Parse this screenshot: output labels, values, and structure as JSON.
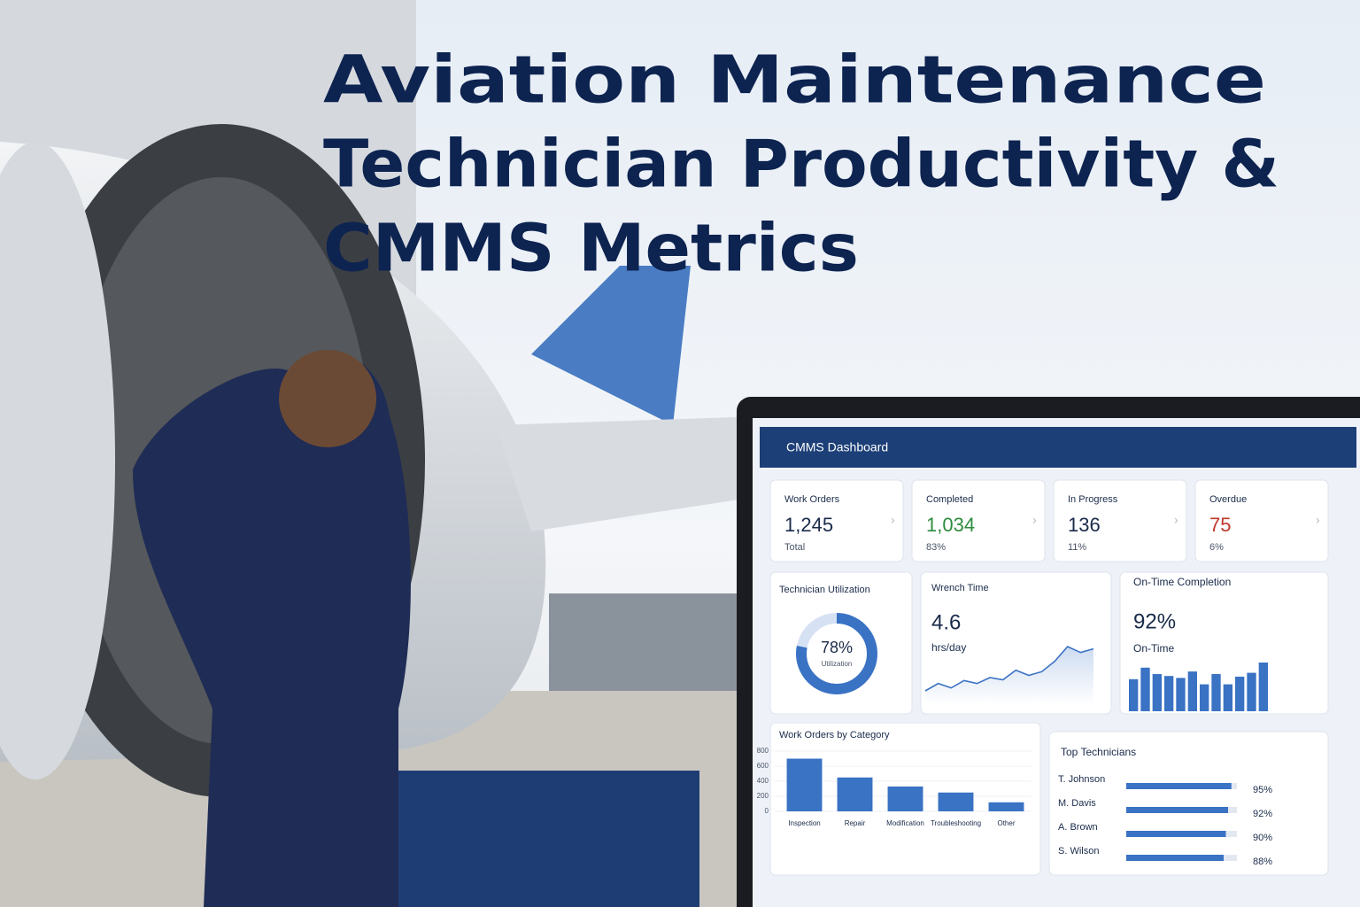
{
  "title_lines": [
    "Aviation Maintenance",
    "Technician Productivity &",
    "CMMS Metrics"
  ],
  "dashboard": {
    "header": "CMMS Dashboard",
    "kpis": [
      {
        "label": "Work Orders",
        "value": "1,245",
        "sub": "Total",
        "color": "#1a2b4a"
      },
      {
        "label": "Completed",
        "value": "1,034",
        "sub": "83%",
        "color": "#2e8b3e"
      },
      {
        "label": "In Progress",
        "value": "136",
        "sub": "11%",
        "color": "#1a2b4a"
      },
      {
        "label": "Overdue",
        "value": "75",
        "sub": "6%",
        "color": "#c0392b"
      }
    ],
    "utilization": {
      "title": "Technician Utilization",
      "value": 78,
      "value_label": "78%",
      "caption": "Utilization",
      "color": "#3a72c4"
    },
    "wrench_time": {
      "title": "Wrench Time",
      "value": "4.6",
      "unit": "hrs/day",
      "trend": [
        2,
        3,
        2.4,
        3.4,
        3,
        3.8,
        3.5,
        4.8,
        4.1,
        4.6,
        6,
        8,
        7.2,
        7.7
      ],
      "color": "#3a72c4"
    },
    "on_time": {
      "title": "On-Time Completion",
      "value": "92%",
      "caption": "On-Time",
      "bars": [
        50,
        68,
        58,
        55,
        52,
        62,
        42,
        58,
        42,
        54,
        60,
        76
      ],
      "color": "#3a72c4"
    },
    "category_chart": {
      "type": "bar",
      "title": "Work Orders by Category",
      "categories": [
        "Inspection",
        "Repair",
        "Modification",
        "Troubleshooting",
        "Other"
      ],
      "values": [
        700,
        450,
        330,
        250,
        120
      ],
      "ylim": [
        0,
        800
      ],
      "yticks": [
        0,
        200,
        400,
        600,
        800
      ],
      "color": "#3a72c4"
    },
    "top_technicians": {
      "title": "Top Technicians",
      "names": [
        "T. Johnson",
        "M. Davis",
        "A. Brown",
        "S. Wilson"
      ],
      "values": [
        95,
        92,
        90,
        88
      ],
      "value_labels": [
        "95%",
        "92%",
        "90%",
        "88%"
      ],
      "color": "#3a72c4"
    }
  }
}
